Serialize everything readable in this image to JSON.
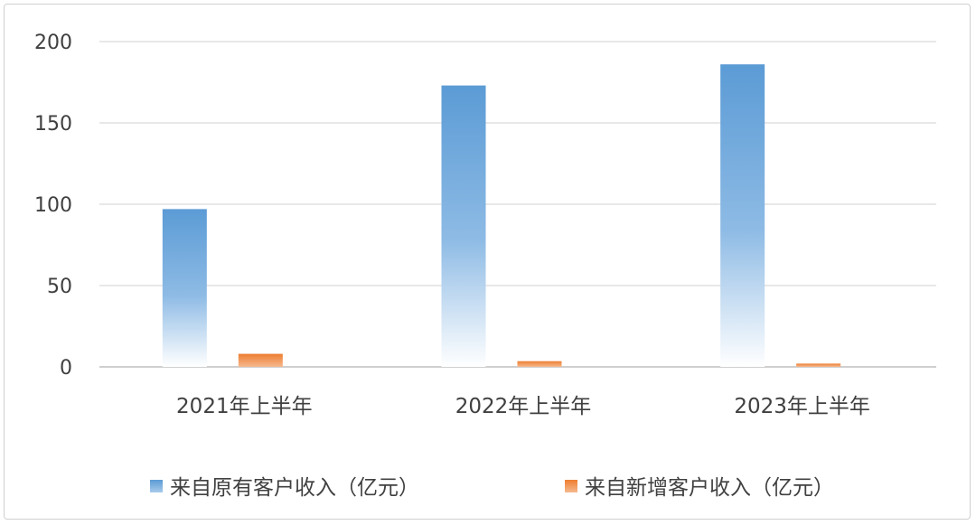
{
  "chart_data": {
    "type": "bar",
    "categories": [
      "2021年上半年",
      "2022年上半年",
      "2023年上半年"
    ],
    "series": [
      {
        "name": "来自原有客户收入（亿元）",
        "values": [
          97,
          173,
          186
        ],
        "color": "#5b9bd5"
      },
      {
        "name": "来自新增客户收入（亿元）",
        "values": [
          8,
          3.5,
          2
        ],
        "color": "#ed7d31"
      }
    ],
    "yticks": [
      0,
      50,
      100,
      150,
      200
    ],
    "ylim": [
      0,
      200
    ],
    "grid": true,
    "legend_position": "bottom",
    "title": "",
    "xlabel": "",
    "ylabel": ""
  }
}
